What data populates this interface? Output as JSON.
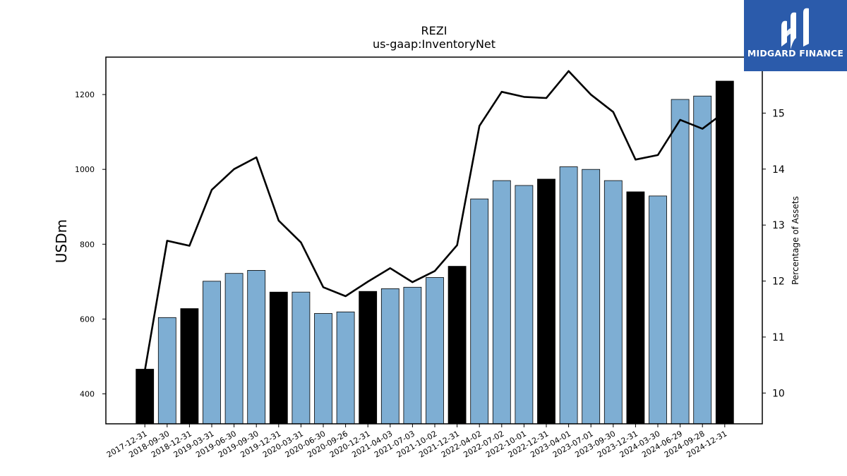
{
  "chart_data": {
    "type": "bar",
    "title": "REZI",
    "subtitle": "us-gaap:InventoryNet",
    "ylabel": "USDm",
    "y2label": "Percentage of Assets",
    "ylim": [
      320,
      1300
    ],
    "y2lim": [
      9.45,
      16.0
    ],
    "yticks": [
      400,
      600,
      800,
      1000,
      1200
    ],
    "y2ticks": [
      10,
      11,
      12,
      13,
      14,
      15
    ],
    "categories": [
      "2017-12-31",
      "2018-09-30",
      "2018-12-31",
      "2019-03-31",
      "2019-06-30",
      "2019-09-30",
      "2019-12-31",
      "2020-03-31",
      "2020-06-30",
      "2020-09-26",
      "2020-12-31",
      "2021-04-03",
      "2021-07-03",
      "2021-10-02",
      "2021-12-31",
      "2022-04-02",
      "2022-07-02",
      "2022-10-01",
      "2022-12-31",
      "2023-04-01",
      "2023-07-01",
      "2023-09-30",
      "2023-12-31",
      "2024-03-30",
      "2024-06-29",
      "2024-09-28",
      "2024-12-31"
    ],
    "series": [
      {
        "kind": "bar",
        "values": [
          466,
          604,
          628,
          701,
          722,
          730,
          672,
          672,
          615,
          619,
          674,
          681,
          685,
          711,
          741,
          921,
          970,
          957,
          974,
          1007,
          1000,
          970,
          940,
          929,
          1187,
          1196,
          1236
        ],
        "year_end": [
          true,
          false,
          true,
          false,
          false,
          false,
          true,
          false,
          false,
          false,
          true,
          false,
          false,
          false,
          true,
          false,
          false,
          false,
          true,
          false,
          false,
          false,
          true,
          false,
          false,
          false,
          true
        ]
      },
      {
        "kind": "line",
        "axis": "right",
        "values": [
          10.4,
          12.72,
          12.63,
          13.63,
          14.0,
          14.21,
          13.08,
          12.69,
          11.89,
          11.73,
          11.99,
          12.23,
          11.98,
          12.18,
          12.64,
          14.77,
          15.38,
          15.29,
          15.27,
          15.75,
          15.33,
          15.02,
          14.17,
          14.25,
          14.88,
          14.72,
          15.02
        ]
      }
    ],
    "colors": {
      "year_end_bar": "#000000",
      "bar": "#7eaed3",
      "line": "#000000"
    },
    "grid": false
  },
  "logo": {
    "text": "MIDGARD FINANCE"
  }
}
